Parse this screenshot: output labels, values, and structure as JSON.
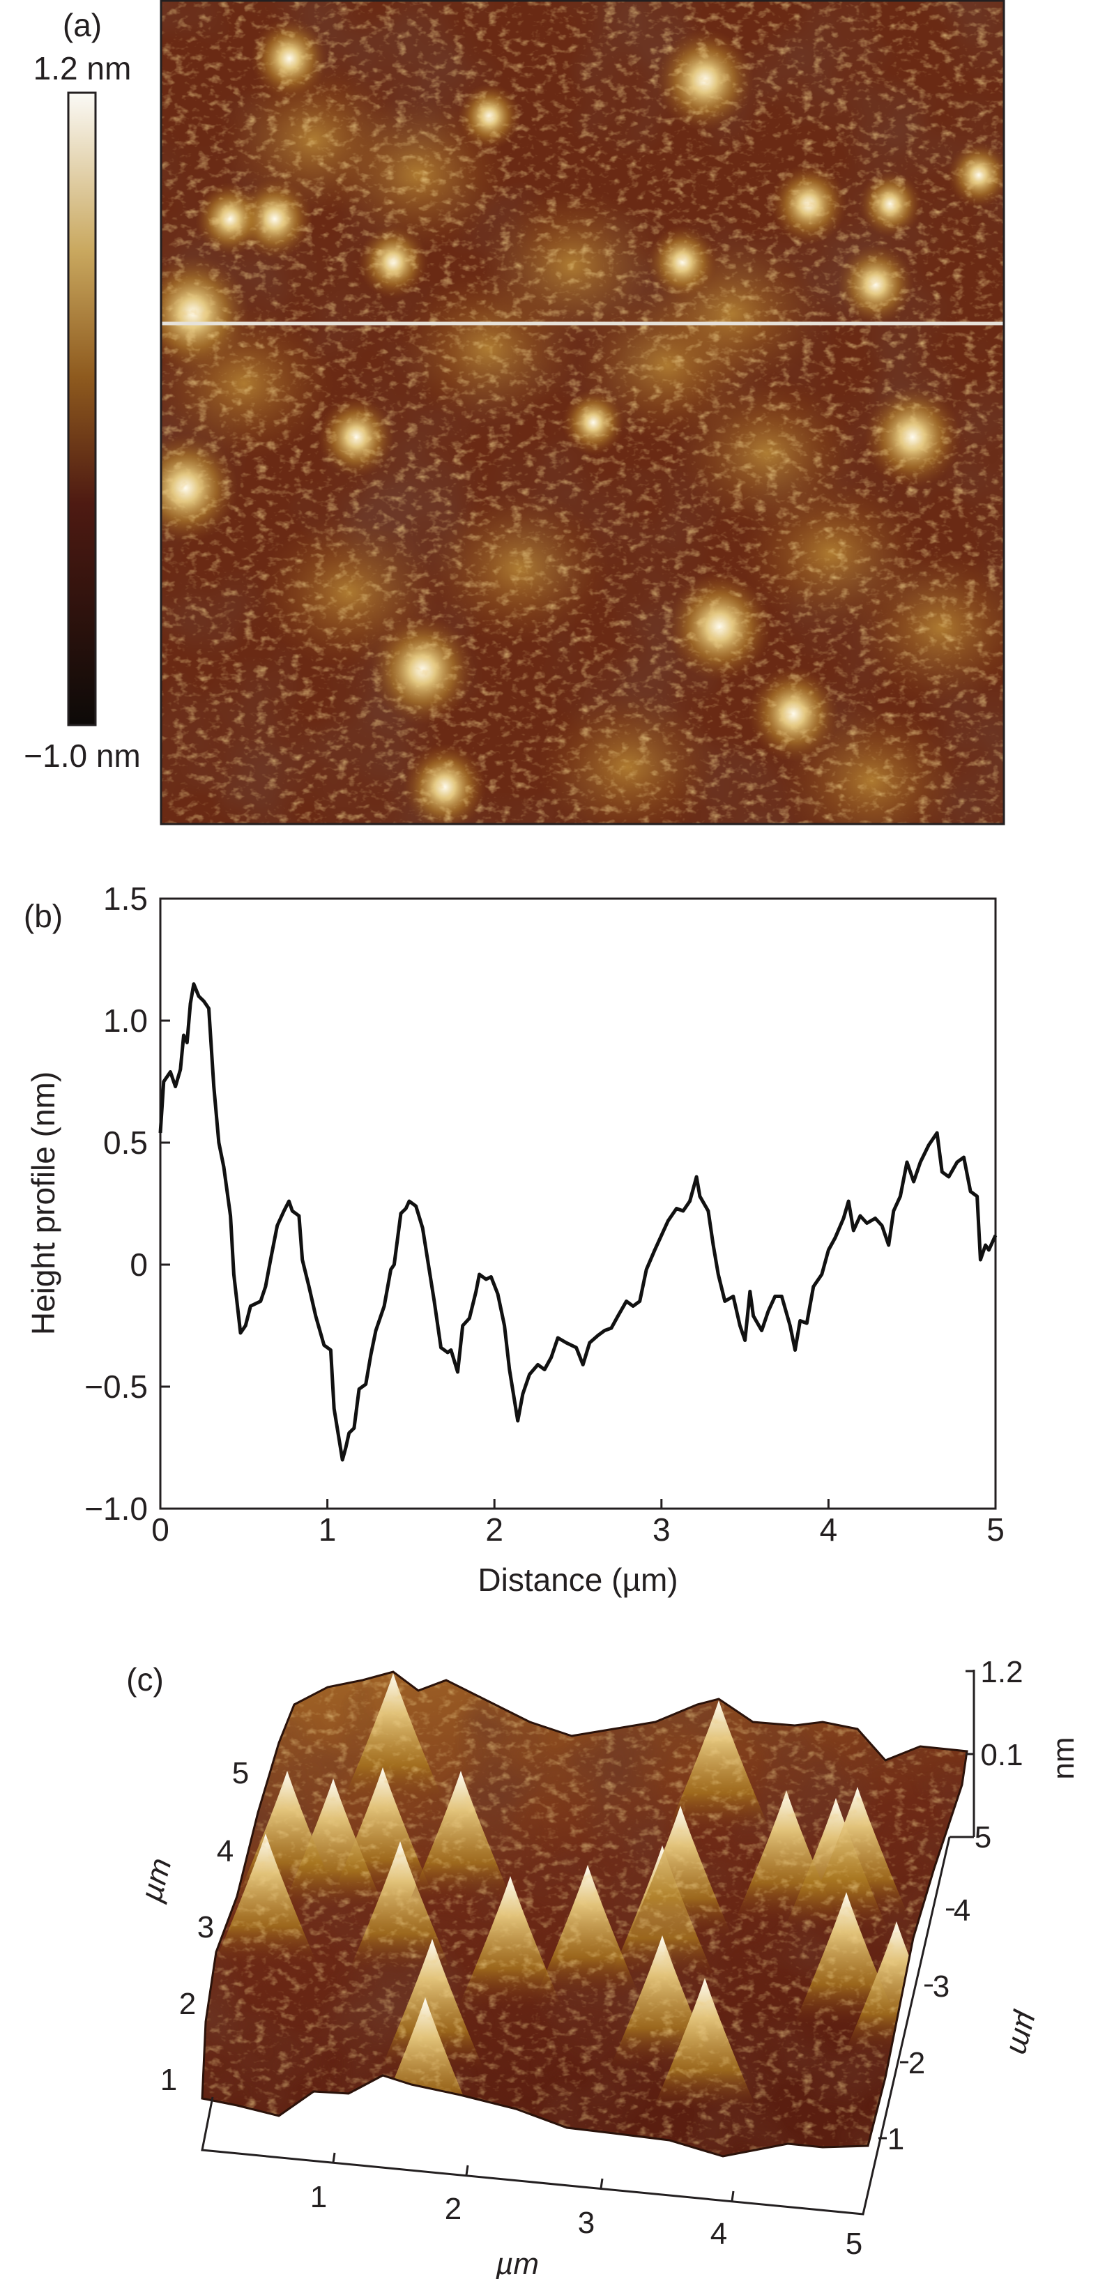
{
  "panel_a": {
    "label": "(a)",
    "colorbar_max": "1.2 nm",
    "colorbar_min": "−1.0 nm",
    "colormap": [
      "#fbfaf6",
      "#c9a85f",
      "#8e5a1e",
      "#4e1a12",
      "#0d0a08"
    ],
    "profile_line_color": "#e6e2da"
  },
  "panel_c": {
    "label": "(c)",
    "x_ticks": [
      "1",
      "2",
      "3",
      "4",
      "5"
    ],
    "x_unit": "µm",
    "y_left_ticks": [
      "5",
      "4",
      "3",
      "2",
      "1"
    ],
    "y_left_unit": "µm",
    "y_right_ticks": [
      "5",
      "4",
      "3",
      "2",
      "1"
    ],
    "y_right_unit": "µm",
    "z_ticks": [
      "1.2",
      "0.1"
    ],
    "z_unit": "nm"
  },
  "chart_data": {
    "type": "line",
    "panel_label": "(b)",
    "title": "",
    "xlabel": "Distance (µm)",
    "ylabel": "Height profile (nm)",
    "xlim": [
      0,
      5
    ],
    "ylim": [
      -1.0,
      1.5
    ],
    "x_ticks": [
      0,
      1,
      2,
      3,
      4,
      5
    ],
    "x_tick_labels": [
      "0",
      "1",
      "2",
      "3",
      "4",
      "5"
    ],
    "y_ticks": [
      1.5,
      1.0,
      0.5,
      0,
      -0.5,
      -1.0
    ],
    "y_tick_labels": [
      "1.5",
      "1.0",
      "0.5",
      "0",
      "−0.5",
      "−1.0"
    ],
    "grid": false,
    "series": [
      {
        "name": "Height profile",
        "color": "#111111",
        "x": [
          0,
          0.02,
          0.06,
          0.09,
          0.12,
          0.14,
          0.16,
          0.18,
          0.2,
          0.23,
          0.26,
          0.29,
          0.32,
          0.35,
          0.38,
          0.42,
          0.44,
          0.48,
          0.51,
          0.54,
          0.6,
          0.63,
          0.66,
          0.7,
          0.74,
          0.77,
          0.79,
          0.83,
          0.85,
          0.89,
          0.93,
          0.98,
          1.02,
          1.04,
          1.09,
          1.11,
          1.13,
          1.16,
          1.19,
          1.23,
          1.26,
          1.29,
          1.34,
          1.38,
          1.4,
          1.44,
          1.47,
          1.49,
          1.53,
          1.57,
          1.6,
          1.64,
          1.68,
          1.72,
          1.74,
          1.78,
          1.81,
          1.85,
          1.89,
          1.91,
          1.95,
          1.98,
          2.02,
          2.06,
          2.09,
          2.14,
          2.17,
          2.21,
          2.26,
          2.3,
          2.34,
          2.38,
          2.43,
          2.46,
          2.49,
          2.53,
          2.57,
          2.62,
          2.66,
          2.7,
          2.74,
          2.79,
          2.83,
          2.87,
          2.91,
          2.96,
          3.0,
          3.04,
          3.09,
          3.13,
          3.17,
          3.21,
          3.23,
          3.28,
          3.31,
          3.34,
          3.38,
          3.43,
          3.47,
          3.5,
          3.53,
          3.55,
          3.6,
          3.64,
          3.68,
          3.72,
          3.77,
          3.8,
          3.83,
          3.87,
          3.91,
          3.96,
          4.0,
          4.04,
          4.09,
          4.12,
          4.15,
          4.19,
          4.23,
          4.28,
          4.32,
          4.36,
          4.39,
          4.43,
          4.47,
          4.51,
          4.55,
          4.6,
          4.65,
          4.68,
          4.72,
          4.77,
          4.81,
          4.85,
          4.89,
          4.91,
          4.94,
          4.96,
          5.0
        ],
        "y": [
          0.54,
          0.75,
          0.79,
          0.73,
          0.8,
          0.94,
          0.91,
          1.07,
          1.15,
          1.1,
          1.08,
          1.05,
          0.73,
          0.5,
          0.4,
          0.2,
          -0.04,
          -0.28,
          -0.25,
          -0.17,
          -0.15,
          -0.09,
          0.02,
          0.16,
          0.22,
          0.26,
          0.22,
          0.2,
          0.02,
          -0.09,
          -0.21,
          -0.33,
          -0.35,
          -0.59,
          -0.8,
          -0.75,
          -0.69,
          -0.67,
          -0.51,
          -0.49,
          -0.37,
          -0.27,
          -0.17,
          -0.02,
          0.0,
          0.21,
          0.23,
          0.26,
          0.24,
          0.15,
          0.02,
          -0.15,
          -0.34,
          -0.36,
          -0.35,
          -0.44,
          -0.25,
          -0.22,
          -0.11,
          -0.04,
          -0.06,
          -0.05,
          -0.12,
          -0.25,
          -0.43,
          -0.64,
          -0.53,
          -0.45,
          -0.41,
          -0.43,
          -0.38,
          -0.3,
          -0.32,
          -0.33,
          -0.34,
          -0.41,
          -0.32,
          -0.29,
          -0.27,
          -0.26,
          -0.21,
          -0.15,
          -0.17,
          -0.15,
          -0.02,
          0.06,
          0.12,
          0.18,
          0.23,
          0.22,
          0.26,
          0.36,
          0.28,
          0.22,
          0.08,
          -0.04,
          -0.15,
          -0.13,
          -0.25,
          -0.31,
          -0.11,
          -0.21,
          -0.27,
          -0.19,
          -0.13,
          -0.13,
          -0.25,
          -0.35,
          -0.23,
          -0.24,
          -0.09,
          -0.04,
          0.06,
          0.11,
          0.19,
          0.26,
          0.14,
          0.2,
          0.17,
          0.19,
          0.16,
          0.08,
          0.22,
          0.28,
          0.42,
          0.34,
          0.42,
          0.49,
          0.54,
          0.38,
          0.36,
          0.42,
          0.44,
          0.3,
          0.28,
          0.02,
          0.08,
          0.06,
          0.12
        ]
      }
    ]
  }
}
